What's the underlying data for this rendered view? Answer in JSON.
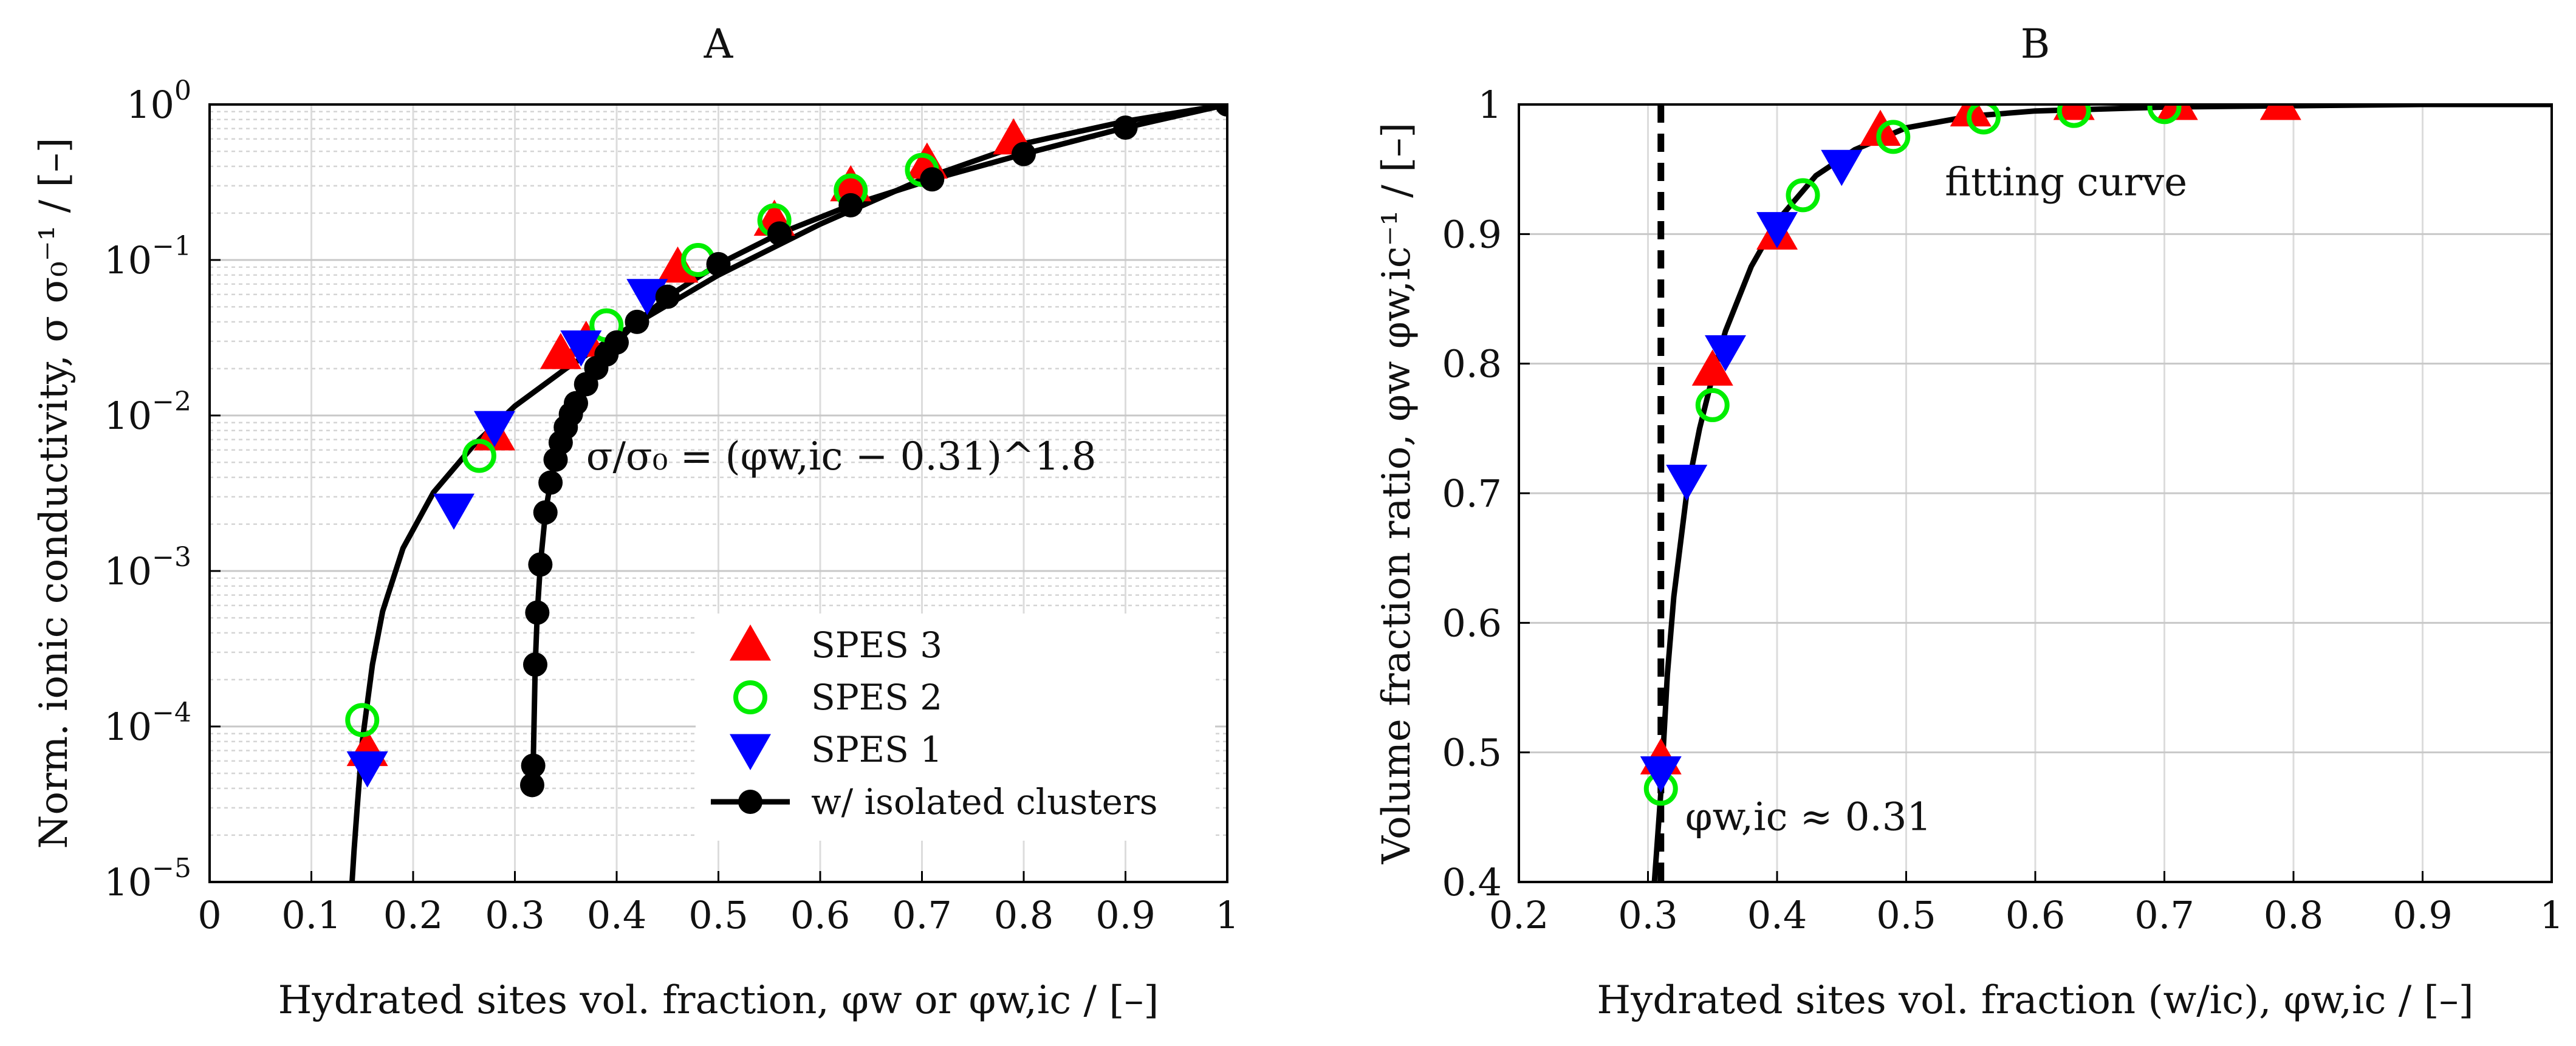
{
  "chart_data": [
    {
      "id": "A",
      "type": "scatter",
      "title": "A",
      "xlabel": "Hydrated sites vol. fraction, φw or φw,ic  /  [–]",
      "ylabel": "Norm. ionic conductivity, σ σ₀⁻¹  /  [–]",
      "xscale": "linear",
      "yscale": "log",
      "xlim": [
        0,
        1
      ],
      "ylim": [
        1e-05,
        1
      ],
      "xticks": [
        0,
        0.1,
        0.2,
        0.3,
        0.4,
        0.5,
        0.6,
        0.7,
        0.8,
        0.9,
        1
      ],
      "xtick_labels": [
        "0",
        "0.1",
        "0.2",
        "0.3",
        "0.4",
        "0.5",
        "0.6",
        "0.7",
        "0.8",
        "0.9",
        "1"
      ],
      "yticks": [
        1e-05,
        0.0001,
        0.001,
        0.01,
        0.1,
        1
      ],
      "ytick_labels": [
        {
          "base": "10",
          "exp": "−5"
        },
        {
          "base": "10",
          "exp": "−4"
        },
        {
          "base": "10",
          "exp": "−3"
        },
        {
          "base": "10",
          "exp": "−2"
        },
        {
          "base": "10",
          "exp": "−1"
        },
        {
          "base": "10",
          "exp": "0"
        }
      ],
      "grid": true,
      "legend_position": "bottom-right",
      "annotation": {
        "text": "σ/σ₀ = (φw,ic − 0.31)^1.8",
        "x": 0.37,
        "y": 0.0045
      },
      "series": [
        {
          "name": "SPES 3",
          "marker": "triangle-up",
          "color": "#ff0000",
          "x": [
            0.155,
            0.28,
            0.345,
            0.37,
            0.46,
            0.555,
            0.63,
            0.705,
            0.79
          ],
          "y": [
            7e-05,
            0.0075,
            0.025,
            0.03,
            0.09,
            0.18,
            0.3,
            0.42,
            0.6
          ]
        },
        {
          "name": "SPES 2",
          "marker": "circle-open",
          "color": "#00ee00",
          "x": [
            0.15,
            0.265,
            0.39,
            0.48,
            0.555,
            0.63,
            0.7
          ],
          "y": [
            0.00011,
            0.0055,
            0.038,
            0.1,
            0.18,
            0.28,
            0.38
          ]
        },
        {
          "name": "SPES 1",
          "marker": "triangle-down",
          "color": "#0000ff",
          "x": [
            0.155,
            0.24,
            0.28,
            0.365,
            0.43
          ],
          "y": [
            5.5e-05,
            0.0025,
            0.0085,
            0.028,
            0.06
          ]
        },
        {
          "name": "w/ isolated clusters",
          "marker": "filled-circle-line",
          "color": "#000000",
          "x": [
            0.317,
            0.318,
            0.32,
            0.322,
            0.325,
            0.33,
            0.335,
            0.34,
            0.345,
            0.35,
            0.355,
            0.36,
            0.37,
            0.38,
            0.39,
            0.4,
            0.42,
            0.45,
            0.5,
            0.56,
            0.63,
            0.71,
            0.8,
            0.9,
            1.0
          ],
          "y": [
            4.2e-05,
            5.6e-05,
            0.00025,
            0.00054,
            0.0011,
            0.00238,
            0.0037,
            0.0052,
            0.0067,
            0.0084,
            0.0102,
            0.012,
            0.0159,
            0.0202,
            0.0247,
            0.0295,
            0.04,
            0.058,
            0.094,
            0.148,
            0.225,
            0.33,
            0.48,
            0.71,
            1.0
          ]
        },
        {
          "name": "fit-left",
          "marker": "none",
          "color": "#000000",
          "legend": false,
          "x": [
            0.14,
            0.142,
            0.145,
            0.15,
            0.16,
            0.17,
            0.19,
            0.22,
            0.26,
            0.3,
            0.35,
            0.4,
            0.5,
            0.6,
            0.7,
            0.8,
            0.9,
            1.0
          ],
          "y": [
            1e-05,
            1.6e-05,
            3e-05,
            8e-05,
            0.00025,
            0.00055,
            0.0014,
            0.0032,
            0.0065,
            0.0115,
            0.02,
            0.033,
            0.08,
            0.17,
            0.33,
            0.56,
            0.78,
            1.0
          ]
        }
      ]
    },
    {
      "id": "B",
      "type": "scatter",
      "title": "B",
      "xlabel": "Hydrated sites vol. fraction (w/ic), φw,ic  /  [–]",
      "ylabel": "Volume fraction ratio, φw φw,ic⁻¹  /  [–]",
      "xscale": "linear",
      "yscale": "linear",
      "xlim": [
        0.2,
        1
      ],
      "ylim": [
        0.4,
        1
      ],
      "xticks": [
        0.2,
        0.3,
        0.4,
        0.5,
        0.6,
        0.7,
        0.8,
        0.9,
        1
      ],
      "xtick_labels": [
        "0.2",
        "0.3",
        "0.4",
        "0.5",
        "0.6",
        "0.7",
        "0.8",
        "0.9",
        "1"
      ],
      "yticks": [
        0.4,
        0.5,
        0.6,
        0.7,
        0.8,
        0.9,
        1
      ],
      "ytick_labels": [
        "0.4",
        "0.5",
        "0.6",
        "0.7",
        "0.8",
        "0.9",
        "1"
      ],
      "grid": true,
      "vline": {
        "x": 0.31,
        "style": "dashed",
        "label": "φw,ic ≈ 0.31"
      },
      "annotation": {
        "text": "fitting curve",
        "x": 0.53,
        "y": 0.93
      },
      "series": [
        {
          "name": "SPES 3",
          "marker": "triangle-up",
          "color": "#ff0000",
          "x": [
            0.31,
            0.35,
            0.4,
            0.48,
            0.55,
            0.63,
            0.71,
            0.79
          ],
          "y": [
            0.495,
            0.795,
            0.9,
            0.98,
            0.995,
            1.0,
            1.0,
            1.0
          ]
        },
        {
          "name": "SPES 2",
          "marker": "circle-open",
          "color": "#00ee00",
          "x": [
            0.31,
            0.35,
            0.42,
            0.49,
            0.56,
            0.63,
            0.7
          ],
          "y": [
            0.472,
            0.768,
            0.93,
            0.975,
            0.99,
            0.995,
            0.998
          ]
        },
        {
          "name": "SPES 1",
          "marker": "triangle-down",
          "color": "#0000ff",
          "x": [
            0.31,
            0.33,
            0.36,
            0.4,
            0.45
          ],
          "y": [
            0.485,
            0.71,
            0.81,
            0.905,
            0.953
          ]
        },
        {
          "name": "fitting curve",
          "marker": "none",
          "color": "#000000",
          "x": [
            0.305,
            0.31,
            0.315,
            0.32,
            0.33,
            0.34,
            0.35,
            0.36,
            0.38,
            0.4,
            0.43,
            0.46,
            0.5,
            0.55,
            0.6,
            0.7,
            0.8,
            0.9,
            1.0
          ],
          "y": [
            0.4,
            0.47,
            0.56,
            0.62,
            0.7,
            0.75,
            0.79,
            0.825,
            0.875,
            0.91,
            0.945,
            0.965,
            0.982,
            0.991,
            0.995,
            0.998,
            0.999,
            1.0,
            1.0
          ]
        }
      ]
    }
  ]
}
